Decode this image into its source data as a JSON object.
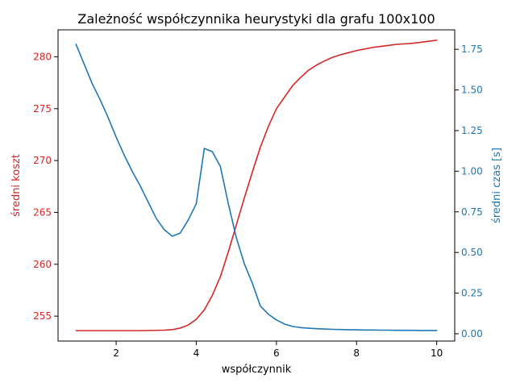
{
  "chart_data": {
    "type": "line",
    "title": "Zależność współczynnika heurystyki dla grafu 100x100",
    "xlabel": "współczynnik",
    "ylabel_left": "średni koszt",
    "ylabel_right": "średni czas [s]",
    "xlim": [
      0.55,
      10.45
    ],
    "ylim_left": [
      252.6,
      282.6
    ],
    "ylim_right": [
      -0.045,
      1.87
    ],
    "x_ticks": [
      2,
      4,
      6,
      8,
      10
    ],
    "y_left_ticks": [
      255,
      260,
      265,
      270,
      275,
      280
    ],
    "y_right_ticks": [
      0.0,
      0.25,
      0.5,
      0.75,
      1.0,
      1.25,
      1.5,
      1.75
    ],
    "y_right_tick_labels": [
      "0.00",
      "0.25",
      "0.50",
      "0.75",
      "1.00",
      "1.25",
      "1.50",
      "1.75"
    ],
    "grid": false,
    "colors": {
      "left": "#d62728",
      "right": "#1f77b4"
    },
    "series": [
      {
        "axis": "left",
        "color": "#d62728",
        "x": [
          1.0,
          1.2,
          1.4,
          1.6,
          1.8,
          2.0,
          2.2,
          2.4,
          2.6,
          2.8,
          3.0,
          3.2,
          3.4,
          3.6,
          3.8,
          4.0,
          4.2,
          4.4,
          4.6,
          4.8,
          5.0,
          5.2,
          5.4,
          5.6,
          5.8,
          6.0,
          6.2,
          6.4,
          6.6,
          6.8,
          7.0,
          7.2,
          7.4,
          7.6,
          7.8,
          8.0,
          8.2,
          8.4,
          8.6,
          8.8,
          9.0,
          9.2,
          9.4,
          9.6,
          9.8,
          10.0
        ],
        "values": [
          253.6,
          253.6,
          253.6,
          253.6,
          253.6,
          253.6,
          253.6,
          253.6,
          253.6,
          253.62,
          253.63,
          253.65,
          253.7,
          253.85,
          254.15,
          254.7,
          255.6,
          257.0,
          258.8,
          261.2,
          263.8,
          266.4,
          268.9,
          271.3,
          273.3,
          275.0,
          276.1,
          277.2,
          278.0,
          278.7,
          279.2,
          279.6,
          279.95,
          280.2,
          280.4,
          280.6,
          280.75,
          280.9,
          281.0,
          281.1,
          281.2,
          281.25,
          281.3,
          281.4,
          281.5,
          281.6
        ]
      },
      {
        "axis": "right",
        "color": "#1f77b4",
        "x": [
          1.0,
          1.2,
          1.4,
          1.6,
          1.8,
          2.0,
          2.2,
          2.4,
          2.6,
          2.8,
          3.0,
          3.2,
          3.4,
          3.6,
          3.8,
          4.0,
          4.2,
          4.4,
          4.6,
          4.8,
          5.0,
          5.2,
          5.4,
          5.6,
          5.8,
          6.0,
          6.2,
          6.4,
          6.6,
          6.8,
          7.0,
          7.2,
          7.4,
          7.6,
          7.8,
          8.0,
          8.2,
          8.4,
          8.6,
          8.8,
          9.0,
          9.2,
          9.4,
          9.6,
          9.8,
          10.0
        ],
        "values": [
          1.78,
          1.66,
          1.54,
          1.44,
          1.33,
          1.21,
          1.1,
          1.0,
          0.91,
          0.81,
          0.71,
          0.64,
          0.6,
          0.62,
          0.7,
          0.8,
          1.14,
          1.12,
          1.03,
          0.8,
          0.59,
          0.43,
          0.31,
          0.17,
          0.12,
          0.085,
          0.06,
          0.045,
          0.038,
          0.034,
          0.031,
          0.029,
          0.027,
          0.026,
          0.025,
          0.024,
          0.023,
          0.023,
          0.022,
          0.022,
          0.021,
          0.021,
          0.021,
          0.02,
          0.02,
          0.02
        ]
      }
    ]
  }
}
